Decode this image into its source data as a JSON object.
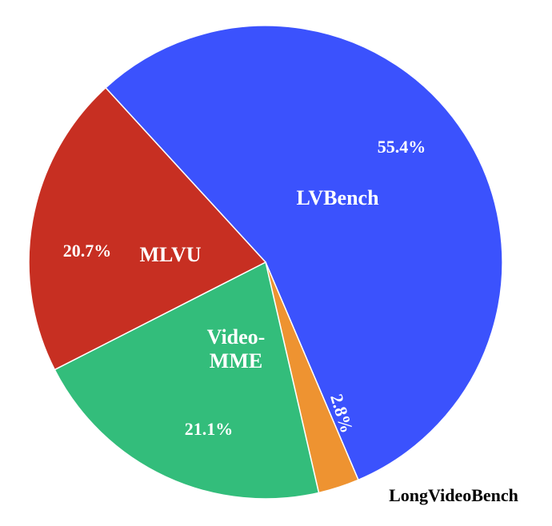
{
  "chart_data": {
    "type": "pie",
    "title": "",
    "slices": [
      {
        "label": "LVBench",
        "label_lines": [
          "LVBench"
        ],
        "value": 55.4,
        "display": "55.4%",
        "color": "#3b52fd",
        "label_position": "inside"
      },
      {
        "label": "LongVideoBench",
        "label_lines": [
          "LongVideoBench"
        ],
        "value": 2.8,
        "display": "2.8%",
        "color": "#ee9331",
        "label_position": "outside"
      },
      {
        "label": "Video-MME",
        "label_lines": [
          "Video-",
          "MME"
        ],
        "value": 21.1,
        "display": "21.1%",
        "color": "#33bd7b",
        "label_position": "inside"
      },
      {
        "label": "MLVU",
        "label_lines": [
          "MLVU"
        ],
        "value": 20.7,
        "display": "20.7%",
        "color": "#c72f22",
        "label_position": "inside"
      }
    ]
  }
}
